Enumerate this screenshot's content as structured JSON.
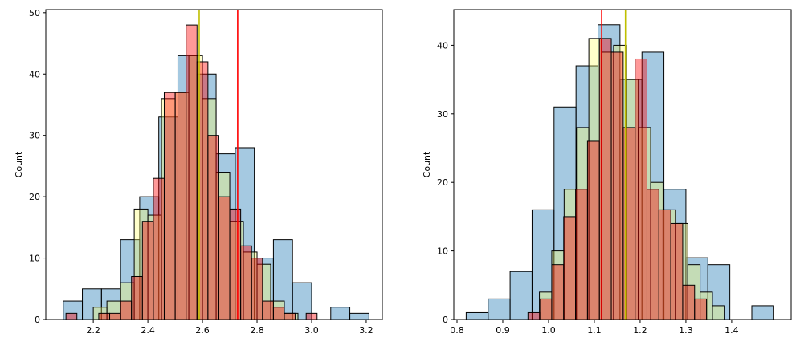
{
  "chart_data": [
    {
      "type": "histogram",
      "ylabel": "Count",
      "xlim": [
        2.026,
        3.259
      ],
      "ylim": [
        0,
        50.5
      ],
      "xticks": [
        2.2,
        2.4,
        2.6,
        2.8,
        {
          "value": 3,
          "label": "3.0"
        },
        3.2
      ],
      "yticks": [
        0,
        10,
        20,
        30,
        40,
        50
      ],
      "series": [
        {
          "color": "#1f77b4",
          "alpha": 0.4,
          "bins": [
            2.09,
            2.16,
            2.23,
            2.3,
            2.37,
            2.44,
            2.51,
            2.58,
            2.65,
            2.72,
            2.79,
            2.86,
            2.93,
            3.0,
            3.07,
            3.14,
            3.21
          ],
          "values": [
            3,
            5,
            5,
            13,
            20,
            33,
            43,
            40,
            27,
            28,
            10,
            13,
            6,
            0,
            2,
            1
          ]
        },
        {
          "color": "#ffff66",
          "alpha": 0.35,
          "bins": [
            2.2,
            2.25,
            2.3,
            2.35,
            2.4,
            2.45,
            2.5,
            2.55,
            2.6,
            2.65,
            2.7,
            2.75,
            2.8,
            2.85,
            2.9,
            2.95
          ],
          "values": [
            2,
            3,
            6,
            18,
            17,
            36,
            37,
            43,
            36,
            24,
            16,
            11,
            9,
            3,
            1
          ]
        },
        {
          "color": "#ff0000",
          "alpha": 0.4,
          "bins": [
            2.1,
            2.14,
            2.18,
            2.22,
            2.26,
            2.3,
            2.34,
            2.38,
            2.42,
            2.46,
            2.5,
            2.54,
            2.58,
            2.62,
            2.66,
            2.7,
            2.74,
            2.78,
            2.82,
            2.86,
            2.9,
            2.94,
            2.98,
            3.02
          ],
          "values": [
            1,
            0,
            0,
            1,
            1,
            3,
            7,
            16,
            23,
            37,
            37,
            48,
            42,
            30,
            20,
            18,
            12,
            10,
            3,
            2,
            1,
            0,
            1
          ]
        }
      ],
      "vlines": [
        {
          "x": 2.588,
          "color": "#bfbf00"
        },
        {
          "x": 2.729,
          "color": "#ff0000"
        }
      ]
    },
    {
      "type": "histogram",
      "ylabel": "Count",
      "xlim": [
        0.793,
        1.53
      ],
      "ylim": [
        0,
        45.2
      ],
      "xticks": [
        0.8,
        0.9,
        {
          "value": 1,
          "label": "1.0"
        },
        1.1,
        1.2,
        1.3,
        1.4
      ],
      "yticks": [
        0,
        10,
        20,
        30,
        40
      ],
      "series": [
        {
          "color": "#1f77b4",
          "alpha": 0.4,
          "bins": [
            0.82,
            0.868,
            0.916,
            0.964,
            1.012,
            1.06,
            1.108,
            1.156,
            1.204,
            1.252,
            1.3,
            1.348,
            1.396,
            1.444,
            1.492
          ],
          "values": [
            1,
            3,
            7,
            16,
            31,
            37,
            43,
            35,
            39,
            19,
            9,
            8,
            0,
            2
          ]
        },
        {
          "color": "#ffff66",
          "alpha": 0.35,
          "bins": [
            0.98,
            1.007,
            1.034,
            1.061,
            1.088,
            1.115,
            1.142,
            1.169,
            1.196,
            1.223,
            1.25,
            1.277,
            1.304,
            1.331,
            1.358,
            1.385
          ],
          "values": [
            4,
            10,
            19,
            28,
            41,
            39,
            40,
            35,
            28,
            20,
            16,
            14,
            8,
            4,
            2
          ]
        },
        {
          "color": "#ff0000",
          "alpha": 0.4,
          "bins": [
            0.955,
            0.981,
            1.007,
            1.033,
            1.059,
            1.085,
            1.111,
            1.137,
            1.163,
            1.189,
            1.215,
            1.241,
            1.267,
            1.293,
            1.319,
            1.345
          ],
          "values": [
            1,
            3,
            8,
            15,
            19,
            26,
            41,
            39,
            28,
            38,
            19,
            16,
            14,
            5,
            3
          ]
        }
      ],
      "vlines": [
        {
          "x": 1.116,
          "color": "#ff0000"
        },
        {
          "x": 1.168,
          "color": "#bfbf00"
        }
      ]
    }
  ]
}
